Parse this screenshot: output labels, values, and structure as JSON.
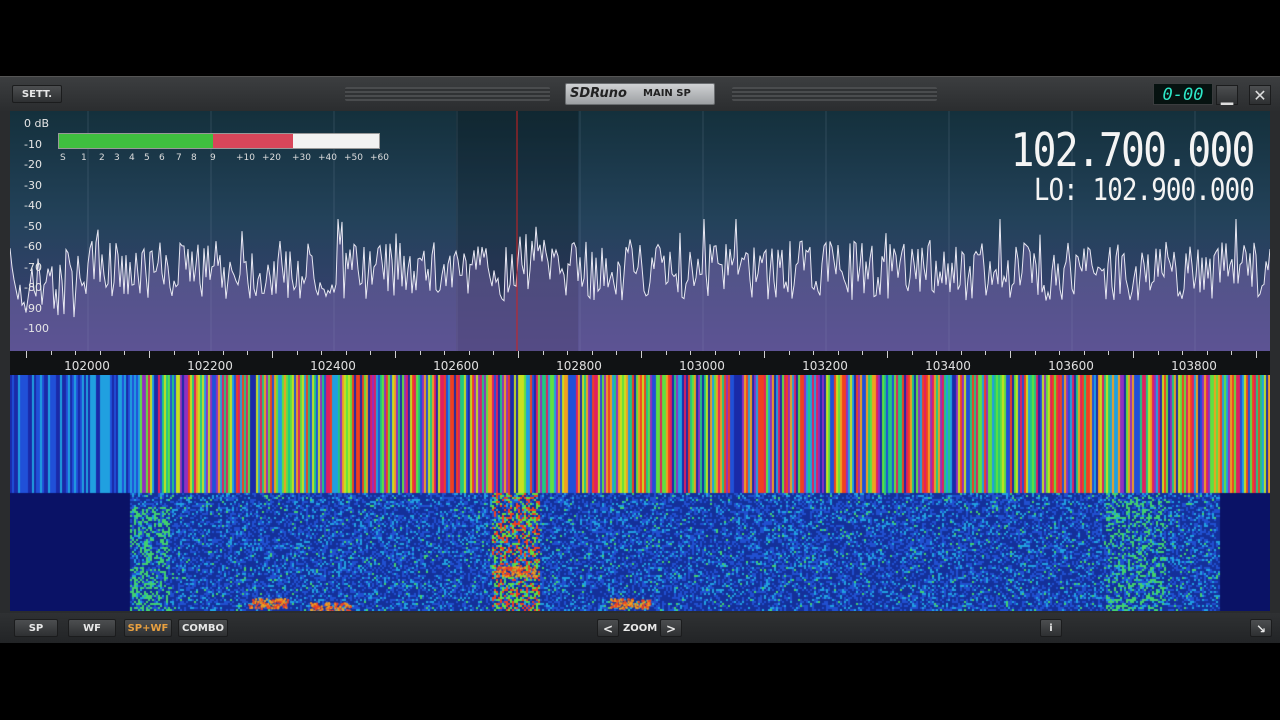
{
  "title": {
    "settings_label": "SETT.",
    "logo": "SDRuno",
    "panel": "MAIN SP",
    "lcd_readout": "0-00",
    "minimize_glyph": "▁",
    "close_glyph": "✕"
  },
  "spectrum": {
    "db_labels": [
      "0 dB",
      "-10",
      "-20",
      "-30",
      "-40",
      "-50",
      "-60",
      "-70",
      "-80",
      "-90",
      "-100"
    ],
    "smeter_scale": [
      "S",
      "1",
      "2",
      "3",
      "4",
      "5",
      "6",
      "7",
      "8",
      "9",
      "+10",
      "+20",
      "+30",
      "+40",
      "+50",
      "+60"
    ],
    "smeter_green_fraction": 0.48,
    "smeter_red_fraction": 0.73,
    "frequency": "102.700.000",
    "lo_label": "LO: 102.900.000"
  },
  "axis": {
    "labels": [
      "102000",
      "102200",
      "102400",
      "102600",
      "102800",
      "103000",
      "103200",
      "103400",
      "103600",
      "103800"
    ]
  },
  "bottom": {
    "sp_label": "SP",
    "wf_label": "WF",
    "spwf_label": "SP+WF",
    "combo_label": "COMBO",
    "zoom_label": "ZOOM",
    "zoom_left": "<",
    "zoom_right": ">",
    "info_label": "i",
    "resize_glyph": "↘"
  },
  "colors": {
    "accent_lcd": "#2de8c8",
    "active_mode": "#e8a040",
    "cursor_line": "#d02020"
  }
}
